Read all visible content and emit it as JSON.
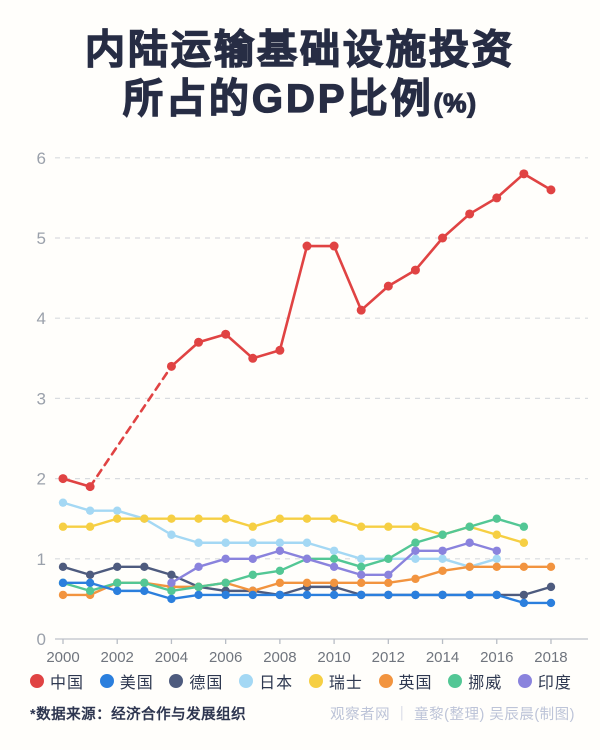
{
  "title": {
    "line1": "内陆运输基础设施投资",
    "line2": "所占的GDP比例",
    "line2_suffix": "(%)"
  },
  "chart_data": {
    "type": "line",
    "x": [
      2000,
      2001,
      2002,
      2003,
      2004,
      2005,
      2006,
      2007,
      2008,
      2009,
      2010,
      2011,
      2012,
      2013,
      2014,
      2015,
      2016,
      2017,
      2018
    ],
    "x_tick_labels": [
      "2000",
      "2002",
      "2004",
      "2006",
      "2008",
      "2010",
      "2012",
      "2014",
      "2016",
      "2018"
    ],
    "y_ticks": [
      "0",
      "1",
      "2",
      "3",
      "4",
      "5",
      "6"
    ],
    "ylim": [
      0,
      6
    ],
    "grid": "horizontal-dashed",
    "legend_position": "bottom",
    "gap_style": "dashed-connector-across-missing-years",
    "series": [
      {
        "id": "china",
        "name": "中国",
        "color": "#e04343",
        "values": [
          2.0,
          1.9,
          null,
          null,
          3.4,
          3.7,
          3.8,
          3.5,
          3.6,
          4.9,
          4.9,
          4.1,
          4.4,
          4.6,
          5.0,
          5.3,
          5.5,
          5.8,
          5.6
        ]
      },
      {
        "id": "usa",
        "name": "美国",
        "color": "#2b7fdd",
        "values": [
          0.7,
          0.7,
          0.6,
          0.6,
          0.5,
          0.55,
          0.55,
          0.55,
          0.55,
          0.55,
          0.55,
          0.55,
          0.55,
          0.55,
          0.55,
          0.55,
          0.55,
          0.45,
          0.45
        ]
      },
      {
        "id": "germany",
        "name": "德国",
        "color": "#4e5b7e",
        "values": [
          0.9,
          0.8,
          0.9,
          0.9,
          0.8,
          0.65,
          0.6,
          0.6,
          0.55,
          0.65,
          0.65,
          0.55,
          0.55,
          0.55,
          0.55,
          0.55,
          0.55,
          0.55,
          0.65
        ]
      },
      {
        "id": "japan",
        "name": "日本",
        "color": "#a4d8f4",
        "values": [
          1.7,
          1.6,
          1.6,
          1.5,
          1.3,
          1.2,
          1.2,
          1.2,
          1.2,
          1.2,
          1.1,
          1.0,
          1.0,
          1.0,
          1.0,
          0.9,
          1.0,
          null,
          null
        ]
      },
      {
        "id": "switzerland",
        "name": "瑞士",
        "color": "#f6cf43",
        "values": [
          1.4,
          1.4,
          1.5,
          1.5,
          1.5,
          1.5,
          1.5,
          1.4,
          1.5,
          1.5,
          1.5,
          1.4,
          1.4,
          1.4,
          1.3,
          1.4,
          1.3,
          1.2,
          null
        ]
      },
      {
        "id": "uk",
        "name": "英国",
        "color": "#f2943f",
        "values": [
          0.55,
          0.55,
          0.7,
          0.7,
          0.65,
          0.65,
          0.7,
          0.6,
          0.7,
          0.7,
          0.7,
          0.7,
          0.7,
          0.75,
          0.85,
          0.9,
          0.9,
          0.9,
          0.9
        ]
      },
      {
        "id": "norway",
        "name": "挪威",
        "color": "#53c795",
        "values": [
          0.7,
          0.6,
          0.7,
          0.7,
          0.6,
          0.65,
          0.7,
          0.8,
          0.85,
          1.0,
          1.0,
          0.9,
          1.0,
          1.2,
          1.3,
          1.4,
          1.5,
          1.4,
          null
        ]
      },
      {
        "id": "india",
        "name": "印度",
        "color": "#8a83dd",
        "values": [
          null,
          null,
          null,
          null,
          0.7,
          0.9,
          1.0,
          1.0,
          1.1,
          1.0,
          0.9,
          0.8,
          0.8,
          1.1,
          1.1,
          1.2,
          1.1,
          null,
          null
        ]
      }
    ]
  },
  "footer": {
    "source": "*数据来源：经济合作与发展组织",
    "credit": "观察者网 ｜ 童黎(整理) 吴辰晨(制图)"
  }
}
